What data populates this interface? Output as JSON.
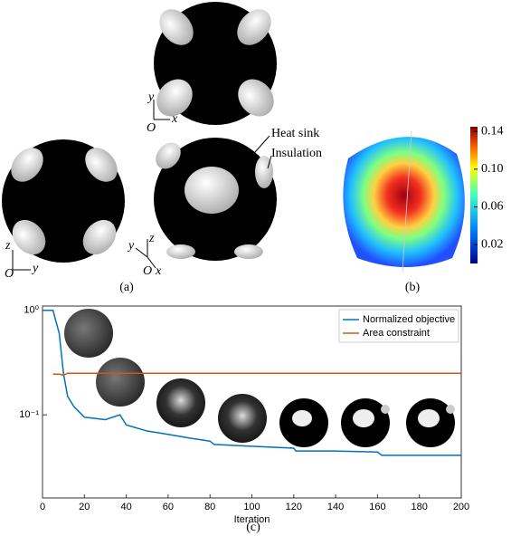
{
  "figure": {
    "panel_labels": [
      "(a)",
      "(b)",
      "(c)"
    ],
    "annotations": [
      "Heat sink",
      "Insulation"
    ],
    "axis_letters": {
      "top": [
        "y",
        "x",
        "O"
      ],
      "left": [
        "z",
        "y",
        "O"
      ],
      "right": [
        "y",
        "z",
        "x",
        "O"
      ]
    },
    "colorbar": {
      "clim": [
        0,
        0.145
      ],
      "ticks": [
        {
          "value": 0.14,
          "label": "0.14"
        },
        {
          "value": 0.1,
          "label": "0.10"
        },
        {
          "value": 0.06,
          "label": "0.06"
        },
        {
          "value": 0.02,
          "label": "0.02"
        }
      ]
    }
  },
  "chart_data": {
    "type": "line",
    "xlabel": "Iteration",
    "log_y": true,
    "grid": false,
    "legend": "upper right",
    "x": [
      0,
      5,
      8,
      10,
      12,
      15,
      20,
      30,
      37,
      40,
      50,
      60,
      70,
      80,
      82,
      100,
      120,
      121,
      140,
      160,
      162,
      200
    ],
    "series": [
      {
        "name": "Normalized objective",
        "color": "#0072bd",
        "values": [
          1.0,
          1.0,
          0.6,
          0.25,
          0.15,
          0.12,
          0.095,
          0.09,
          0.1,
          0.08,
          0.07,
          0.065,
          0.06,
          0.056,
          0.052,
          0.05,
          0.048,
          0.045,
          0.045,
          0.044,
          0.041,
          0.041
        ]
      },
      {
        "name": "Area constraint",
        "color": "#d95319",
        "values": [
          null,
          0.245,
          0.245,
          0.24,
          0.25,
          0.25,
          0.25,
          0.25,
          0.25,
          0.25,
          0.25,
          0.25,
          0.25,
          0.25,
          0.25,
          0.25,
          0.25,
          0.25,
          0.25,
          0.25,
          0.25,
          0.25
        ]
      }
    ],
    "xlim": [
      0,
      200
    ],
    "xticks": [
      0,
      20,
      40,
      60,
      80,
      100,
      120,
      140,
      160,
      180,
      200
    ],
    "ylim": [
      0.016,
      1.1
    ],
    "yticks": [
      {
        "value": 1,
        "label": "10⁰"
      },
      {
        "value": 0.1,
        "label": "10⁻¹"
      }
    ]
  }
}
